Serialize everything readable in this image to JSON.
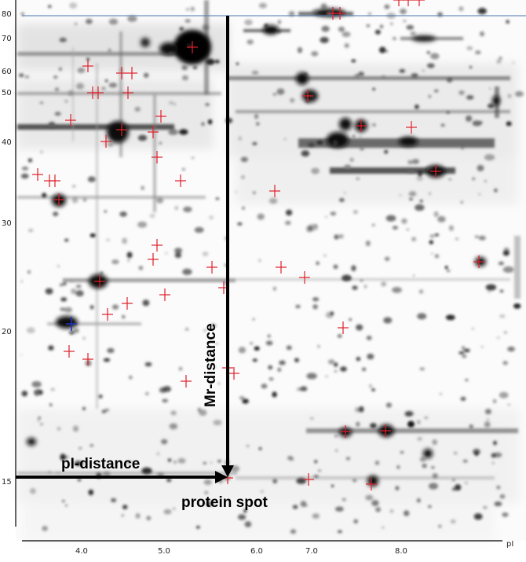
{
  "figure": {
    "y_ticks": [
      "80",
      "70",
      "60",
      "50",
      "40",
      "30",
      "20",
      "15"
    ],
    "x_ticks": [
      "4.0",
      "5.0",
      "6.0",
      "7.0",
      "8.0"
    ],
    "x_axis_unit": "pI",
    "labels": {
      "mr_distance": "Mr-distance",
      "pi_distance": "pI-distance",
      "protein_spot": "protein spot"
    },
    "colors": {
      "background": "#ffffff",
      "spots": "#111111",
      "markers": "#e0202a",
      "reference_marker": "#2030c0",
      "reference_line": "#4a78b0",
      "arrows": "#000000"
    }
  }
}
